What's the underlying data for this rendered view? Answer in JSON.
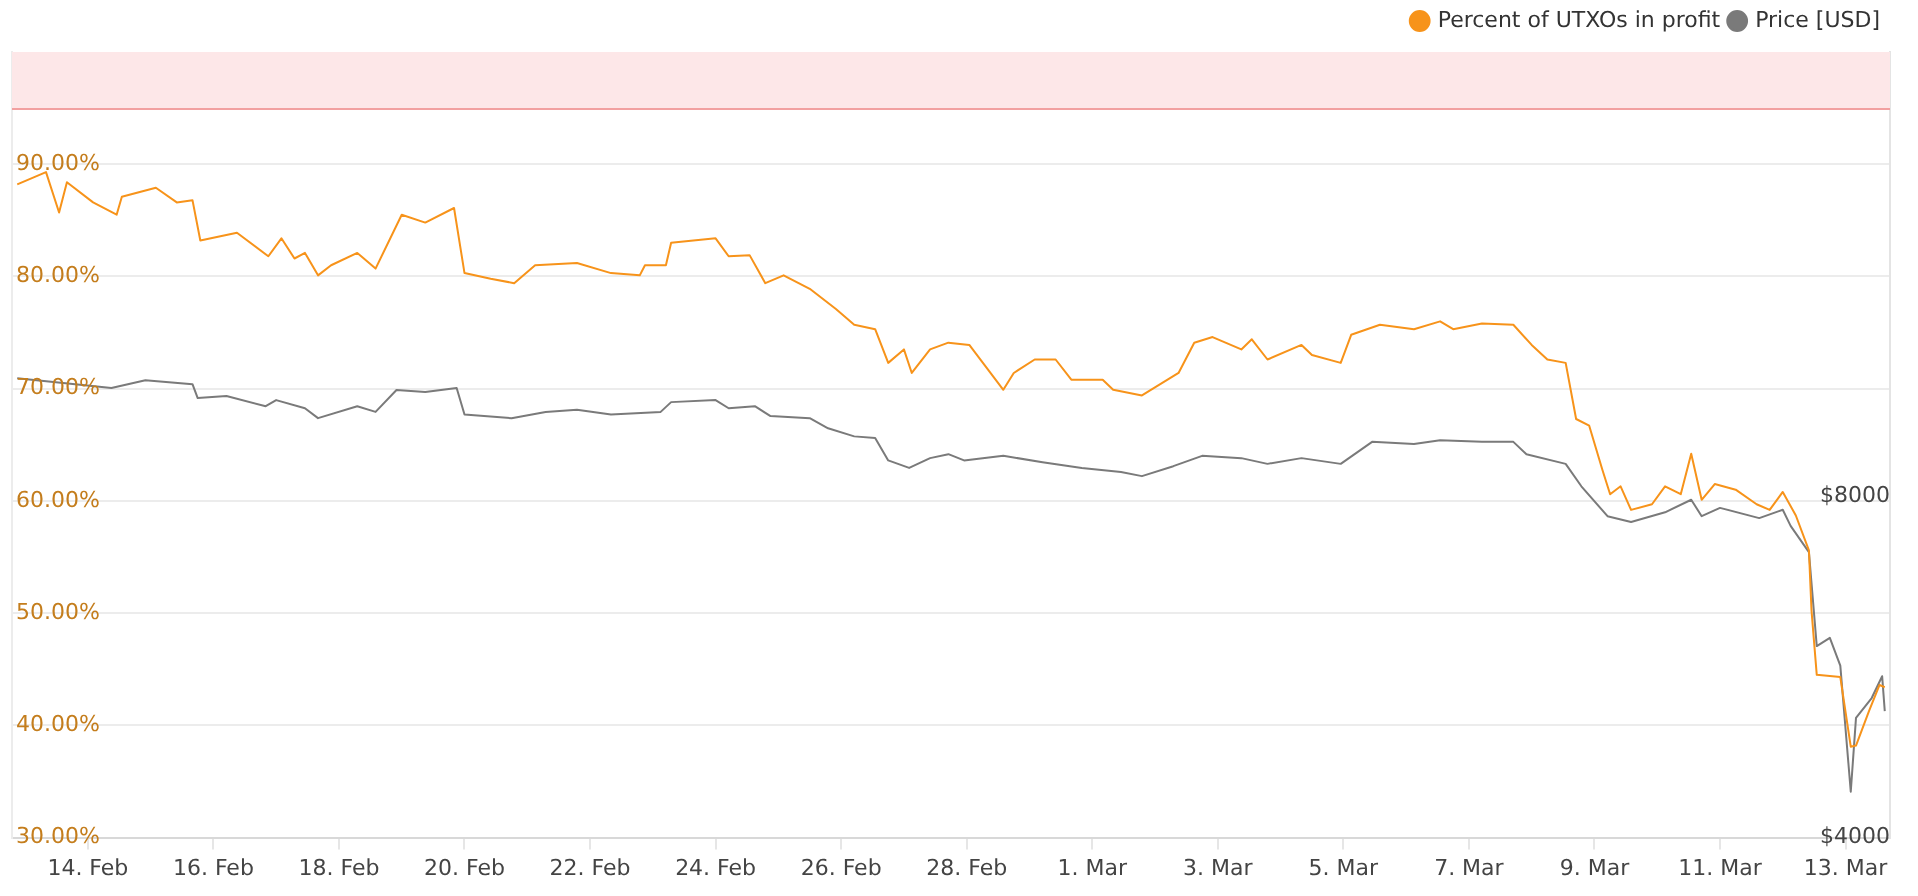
{
  "chart_data": {
    "type": "line",
    "log": "y2",
    "grid": "y",
    "legend": "top right",
    "xlim": [
      "--02-12T19:00",
      "--03-13T17:00"
    ],
    "xticks": [
      {
        "value": "--02-14",
        "label": "14. Feb"
      },
      {
        "value": "--02-16",
        "label": "16. Feb"
      },
      {
        "value": "--02-18",
        "label": "18. Feb"
      },
      {
        "value": "--02-20",
        "label": "20. Feb"
      },
      {
        "value": "--02-22",
        "label": "22. Feb"
      },
      {
        "value": "--02-24",
        "label": "24. Feb"
      },
      {
        "value": "--02-26",
        "label": "26. Feb"
      },
      {
        "value": "--02-28",
        "label": "28. Feb"
      },
      {
        "value": "--03-01",
        "label": "1. Mar"
      },
      {
        "value": "--03-03",
        "label": "3. Mar"
      },
      {
        "value": "--03-05",
        "label": "5. Mar"
      },
      {
        "value": "--03-07",
        "label": "7. Mar"
      },
      {
        "value": "--03-09",
        "label": "9. Mar"
      },
      {
        "value": "--03-11",
        "label": "11. Mar"
      },
      {
        "value": "--03-13",
        "label": "13. Mar"
      }
    ],
    "ylim": [
      30,
      100
    ],
    "yticks": [
      {
        "value": 30,
        "label": "30.00%"
      },
      {
        "value": 40,
        "label": "40.00%"
      },
      {
        "value": 50,
        "label": "50.00%"
      },
      {
        "value": 60,
        "label": "60.00%"
      },
      {
        "value": 70,
        "label": "70.00%"
      },
      {
        "value": 80,
        "label": "80.00%"
      },
      {
        "value": 90,
        "label": "90.00%"
      }
    ],
    "y2lim": [
      4000,
      19700
    ],
    "y2ticks": [
      {
        "value": 4000,
        "label": "$4000"
      },
      {
        "value": 8000,
        "label": "$8000"
      }
    ],
    "bands": [
      {
        "axis": "y",
        "from": 95,
        "to": 100,
        "color": "#fde7e8"
      }
    ],
    "ref_lines": [
      {
        "axis": "y",
        "value": 95,
        "color": "#f2a0a0"
      }
    ],
    "series": [
      {
        "name": "Percent of UTXOs in profit",
        "color": "#f7931a",
        "x": [
          "--02-12T21:00",
          "--02-13T08:00",
          "--02-13T13:00",
          "--02-13T16:00",
          "--02-14T02:00",
          "--02-14T11:00",
          "--02-14T13:00",
          "--02-15T02:00",
          "--02-15T10:00",
          "--02-15T16:00",
          "--02-15T19:00",
          "--02-16T09:00",
          "--02-16T21:00",
          "--02-17T02:00",
          "--02-17T07:00",
          "--02-17T11:00",
          "--02-17T16:00",
          "--02-17T21:00",
          "--02-18T07:00",
          "--02-18T14:00",
          "--02-19T00:00",
          "--02-19T09:00",
          "--02-19T20:00",
          "--02-20T00:00",
          "--02-20T10:00",
          "--02-20T19:00",
          "--02-21T03:00",
          "--02-21T19:00",
          "--02-22T08:00",
          "--02-22T19:00",
          "--02-22T21:00",
          "--02-23T05:00",
          "--02-23T07:00",
          "--02-24T00:00",
          "--02-24T05:00",
          "--02-24T13:00",
          "--02-24T19:00",
          "--02-25T02:00",
          "--02-25T12:00",
          "--02-25T22:00",
          "--02-26T05:00",
          "--02-26T13:00",
          "--02-26T18:00",
          "--02-27T00:00",
          "--02-27T03:00",
          "--02-27T10:00",
          "--02-27T17:00",
          "--02-28T01:00",
          "--02-28T14:00",
          "--02-28T18:00",
          "--02-29T02:00",
          "--02-29T10:00",
          "--02-29T16:00",
          "--03-01T04:00",
          "--03-01T08:00",
          "--03-01T19:00",
          "--03-02T09:00",
          "--03-02T15:00",
          "--03-02T22:00",
          "--03-03T09:00",
          "--03-03T13:00",
          "--03-03T19:00",
          "--03-04T08:00",
          "--03-04T12:00",
          "--03-04T23:00",
          "--03-05T03:00",
          "--03-05T14:00",
          "--03-06T03:00",
          "--03-06T13:00",
          "--03-06T18:00",
          "--03-07T05:00",
          "--03-07T17:00",
          "--03-08T00:00",
          "--03-08T06:00",
          "--03-08T13:00",
          "--03-08T17:00",
          "--03-08T22:00",
          "--03-09T03:00",
          "--03-09T06:00",
          "--03-09T10:00",
          "--03-09T14:00",
          "--03-09T22:00",
          "--03-10T03:00",
          "--03-10T09:00",
          "--03-10T13:00",
          "--03-10T17:00",
          "--03-10T22:00",
          "--03-11T06:00",
          "--03-11T14:00",
          "--03-11T19:00",
          "--03-12T00:00",
          "--03-12T05:00",
          "--03-12T10:00",
          "--03-12T11:00",
          "--03-12T13:00",
          "--03-12T22:00",
          "--03-13T02:00",
          "--03-13T04:00",
          "--03-13T09:00",
          "--03-13T13:00",
          "--03-13T15:00"
        ],
        "values": [
          88.2,
          89.3,
          85.7,
          88.4,
          86.6,
          85.5,
          87.1,
          87.9,
          86.6,
          86.8,
          83.2,
          83.9,
          81.8,
          83.4,
          81.6,
          82.1,
          80.1,
          81.0,
          82.1,
          80.7,
          85.5,
          84.8,
          86.1,
          80.3,
          79.8,
          79.4,
          81.0,
          81.2,
          80.3,
          80.1,
          81.0,
          81.0,
          83.0,
          83.4,
          81.8,
          81.9,
          79.4,
          80.1,
          78.9,
          77.1,
          75.7,
          75.3,
          72.3,
          73.5,
          71.4,
          73.5,
          74.1,
          73.9,
          69.9,
          71.4,
          72.6,
          72.6,
          70.8,
          70.8,
          69.9,
          69.4,
          71.4,
          74.1,
          74.6,
          73.5,
          74.4,
          72.6,
          73.9,
          73.0,
          72.3,
          74.8,
          75.7,
          75.3,
          76.0,
          75.3,
          75.8,
          75.7,
          73.9,
          72.6,
          72.3,
          67.3,
          66.7,
          62.8,
          60.6,
          61.3,
          59.2,
          59.7,
          61.3,
          60.6,
          64.2,
          60.1,
          61.5,
          61.0,
          59.7,
          59.2,
          60.8,
          58.7,
          55.6,
          50.2,
          44.5,
          44.3,
          38.1,
          38.2,
          41.3,
          43.6,
          43.4
        ]
      },
      {
        "name": "Price [USD]",
        "color": "#7a7a7a",
        "axis": "y2",
        "x": [
          "--02-12T21:00",
          "--02-14T09:00",
          "--02-14T22:00",
          "--02-15T16:00",
          "--02-15T18:00",
          "--02-16T05:00",
          "--02-16T20:00",
          "--02-17T00:00",
          "--02-17T11:00",
          "--02-17T16:00",
          "--02-18T07:00",
          "--02-18T14:00",
          "--02-18T22:00",
          "--02-19T09:00",
          "--02-19T21:00",
          "--02-20T00:00",
          "--02-20T18:00",
          "--02-21T07:00",
          "--02-21T19:00",
          "--02-22T08:00",
          "--02-23T03:00",
          "--02-23T07:00",
          "--02-24T00:00",
          "--02-24T05:00",
          "--02-24T15:00",
          "--02-24T21:00",
          "--02-25T12:00",
          "--02-25T19:00",
          "--02-26T05:00",
          "--02-26T13:00",
          "--02-26T18:00",
          "--02-27T02:00",
          "--02-27T10:00",
          "--02-27T17:00",
          "--02-27T23:00",
          "--02-28T14:00",
          "--02-29T05:00",
          "--02-29T20:00",
          "--03-01T11:00",
          "--03-01T19:00",
          "--03-02T07:00",
          "--03-02T18:00",
          "--03-03T09:00",
          "--03-03T19:00",
          "--03-04T08:00",
          "--03-04T23:00",
          "--03-05T11:00",
          "--03-06T03:00",
          "--03-06T13:00",
          "--03-07T05:00",
          "--03-07T17:00",
          "--03-07T22:00",
          "--03-08T13:00",
          "--03-08T19:00",
          "--03-09T05:00",
          "--03-09T14:00",
          "--03-10T03:00",
          "--03-10T13:00",
          "--03-10T17:00",
          "--03-11T00:00",
          "--03-11T15:00",
          "--03-12T00:00",
          "--03-12T03:00",
          "--03-12T10:00",
          "--03-12T13:00",
          "--03-12T18:00",
          "--03-12T22:00",
          "--03-13T02:00",
          "--03-13T04:00",
          "--03-13T10:00",
          "--03-13T14:00",
          "--03-13T15:00"
        ],
        "values": [
          10160,
          9960,
          10120,
          10040,
          9760,
          9800,
          9600,
          9720,
          9560,
          9370,
          9600,
          9490,
          9920,
          9880,
          9960,
          9440,
          9370,
          9490,
          9530,
          9440,
          9490,
          9680,
          9720,
          9560,
          9600,
          9410,
          9370,
          9180,
          9030,
          9000,
          8600,
          8470,
          8640,
          8710,
          8600,
          8680,
          8570,
          8470,
          8400,
          8330,
          8500,
          8680,
          8640,
          8540,
          8640,
          8540,
          8930,
          8890,
          8960,
          8930,
          8930,
          8710,
          8540,
          8160,
          7680,
          7590,
          7740,
          7940,
          7680,
          7810,
          7650,
          7780,
          7530,
          7140,
          5900,
          6000,
          5670,
          4390,
          5100,
          5310,
          5550,
          5170
        ]
      }
    ]
  }
}
